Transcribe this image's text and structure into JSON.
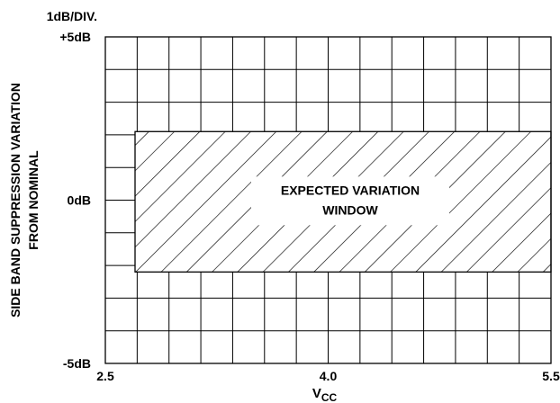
{
  "chart_data": {
    "type": "area",
    "title": "",
    "xlabel": "V",
    "xlabel_sub": "CC",
    "ylabel_lines": [
      "SIDE BAND SUPPRESSION VARIATION",
      "FROM NOMINAL"
    ],
    "scale_note": "1dB/DIV.",
    "xlim": [
      2.5,
      5.5
    ],
    "ylim": [
      -5,
      5
    ],
    "x_ticks": [
      {
        "value": 2.5,
        "label": "2.5"
      },
      {
        "value": 4.0,
        "label": "4.0"
      },
      {
        "value": 5.5,
        "label": "5.5"
      }
    ],
    "y_ticks": [
      {
        "value": 5,
        "label": "+5dB"
      },
      {
        "value": 0,
        "label": "0dB"
      },
      {
        "value": -5,
        "label": "-5dB"
      }
    ],
    "grid": {
      "x_divisions": 14,
      "y_divisions": 10,
      "on": true
    },
    "region": {
      "name": "EXPECTED VARIATION WINDOW",
      "label_lines": [
        "EXPECTED VARIATION",
        "WINDOW"
      ],
      "x_range": [
        2.7,
        5.5
      ],
      "y_range": [
        -2.2,
        2.1
      ],
      "fill": "diagonal-hatch"
    }
  },
  "colors": {
    "ink": "#000000",
    "background": "#ffffff"
  }
}
